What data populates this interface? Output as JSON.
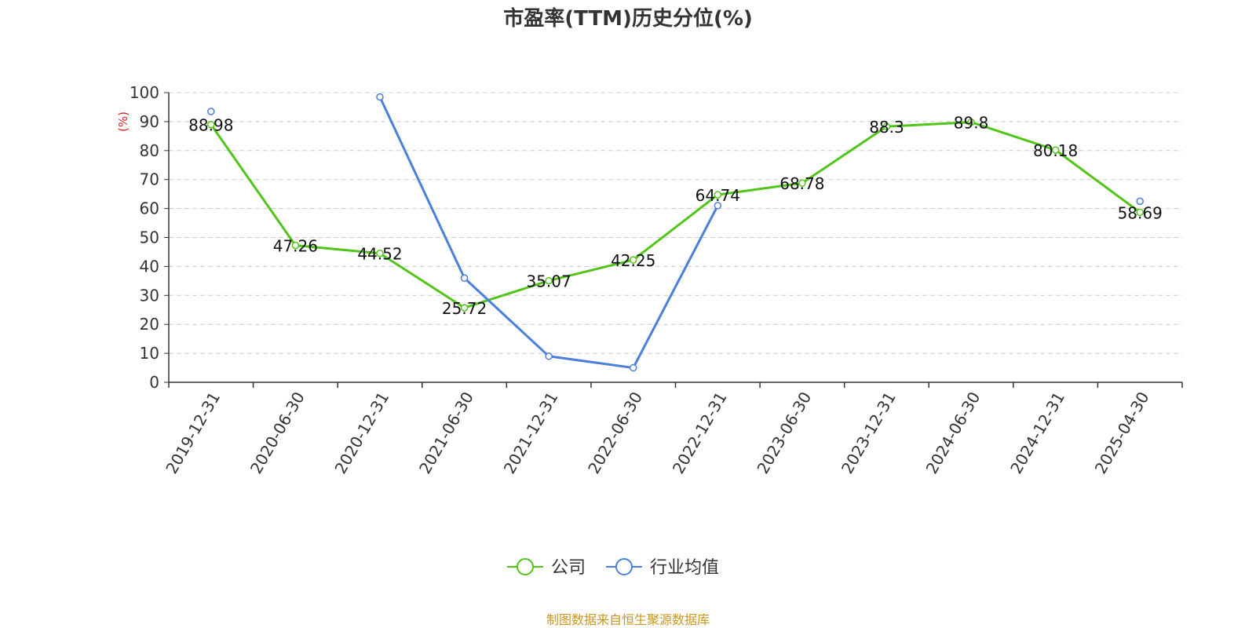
{
  "chart_data": {
    "type": "line",
    "title": "市盈率(TTM)历史分位(%)",
    "ylabel": "(%)",
    "xlabel": "",
    "ylim": [
      0,
      100
    ],
    "yticks": [
      0,
      10,
      20,
      30,
      40,
      50,
      60,
      70,
      80,
      90,
      100
    ],
    "categories": [
      "2019-12-31",
      "2020-06-30",
      "2020-12-31",
      "2021-06-30",
      "2021-12-31",
      "2022-06-30",
      "2022-12-31",
      "2023-06-30",
      "2023-12-31",
      "2024-06-30",
      "2024-12-31",
      "2025-04-30"
    ],
    "grid": true,
    "legend_position": "bottom",
    "series": [
      {
        "name": "公司",
        "color": "#52c41a",
        "values": [
          88.98,
          47.26,
          44.52,
          25.72,
          35.07,
          42.25,
          64.74,
          68.78,
          88.3,
          89.8,
          80.18,
          58.69
        ],
        "labels": [
          "88.98",
          "47.26",
          "44.52",
          "25.72",
          "35.07",
          "42.25",
          "64.74",
          "68.78",
          "88.3",
          "89.8",
          "80.18",
          "58.69"
        ]
      },
      {
        "name": "行业均值",
        "color": "#4a7fdc",
        "values": [
          93.5,
          null,
          98.5,
          36,
          9,
          5,
          61,
          null,
          null,
          null,
          null,
          62.5
        ]
      }
    ],
    "source": "制图数据来自恒生聚源数据库"
  }
}
